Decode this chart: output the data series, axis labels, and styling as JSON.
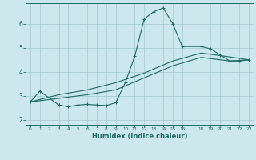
{
  "title": "",
  "xlabel": "Humidex (Indice chaleur)",
  "background_color": "#cce8ec",
  "grid_color": "#aacdd4",
  "line_color": "#1a6b60",
  "xlim": [
    -0.5,
    23.5
  ],
  "ylim": [
    1.8,
    6.85
  ],
  "xticks": [
    0,
    1,
    2,
    3,
    4,
    5,
    6,
    7,
    8,
    9,
    10,
    11,
    12,
    13,
    14,
    15,
    16,
    18,
    19,
    20,
    21,
    22,
    23
  ],
  "yticks": [
    2,
    3,
    4,
    5,
    6
  ],
  "series1_x": [
    0,
    1,
    3,
    4,
    5,
    6,
    7,
    8,
    9,
    10,
    11,
    12,
    13,
    14,
    15,
    16,
    18,
    19,
    20,
    21,
    22,
    23
  ],
  "series1_y": [
    2.75,
    3.2,
    2.62,
    2.55,
    2.62,
    2.65,
    2.62,
    2.6,
    2.72,
    3.55,
    4.65,
    6.2,
    6.5,
    6.65,
    6.0,
    5.05,
    5.05,
    4.95,
    4.7,
    4.45,
    4.45,
    4.5
  ],
  "series2_x": [
    0,
    3,
    6,
    9,
    12,
    15,
    18,
    21,
    23
  ],
  "series2_y": [
    2.75,
    2.9,
    3.05,
    3.25,
    3.75,
    4.25,
    4.6,
    4.45,
    4.5
  ],
  "series3_x": [
    0,
    3,
    6,
    9,
    12,
    15,
    18,
    21,
    23
  ],
  "series3_y": [
    2.75,
    3.05,
    3.25,
    3.55,
    3.95,
    4.45,
    4.78,
    4.62,
    4.5
  ]
}
